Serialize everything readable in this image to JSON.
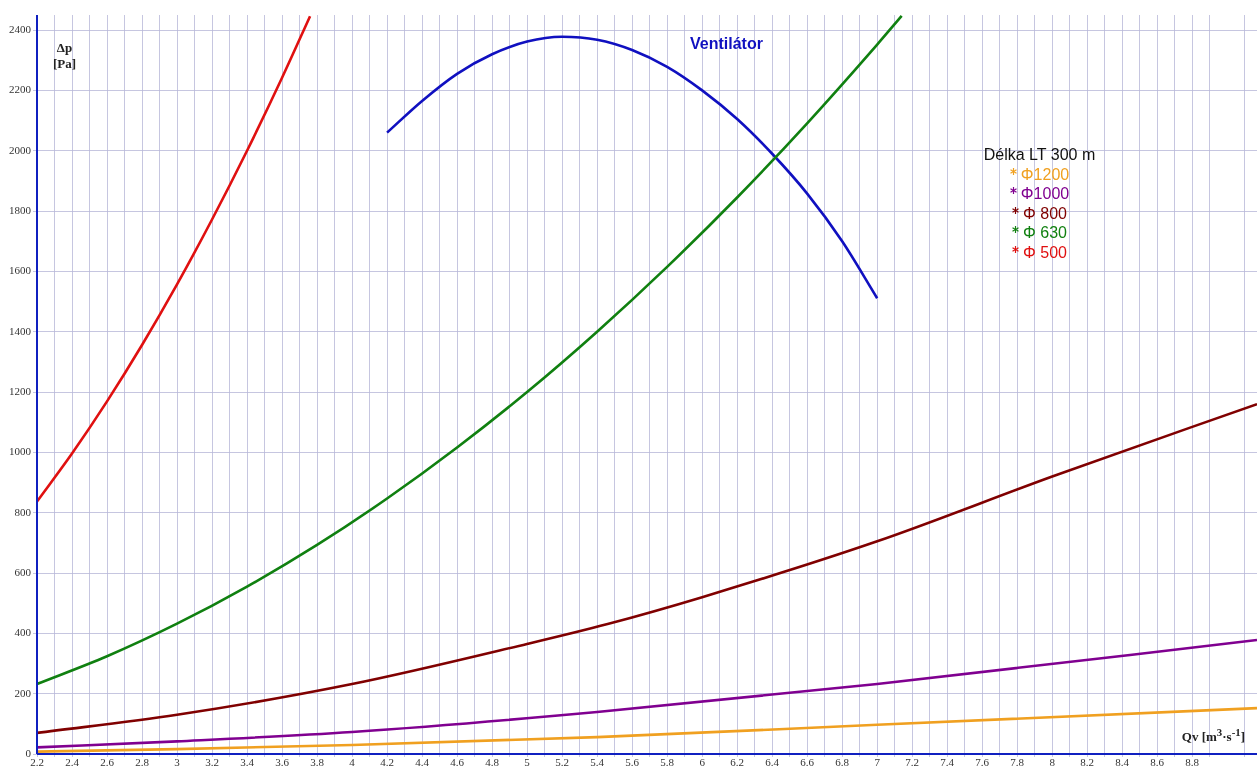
{
  "chart_data": {
    "type": "line",
    "xlabel": "Qv [m$^{3}$·s$^{-1}$]",
    "ylabel": "Δp\n[Pa]",
    "legend_title": "Délka LT 300 m",
    "legend": "top right",
    "grid": true,
    "marker": "none",
    "line_style": "solid",
    "xlim": [
      2.2,
      9.17
    ],
    "ylim": [
      0,
      2450
    ],
    "xticks": [
      2.2,
      {
        "value": 2.3,
        "label": null
      },
      2.4,
      {
        "value": 2.5,
        "label": null
      },
      2.6,
      {
        "value": 2.7,
        "label": null
      },
      2.8,
      {
        "value": 2.9,
        "label": null
      },
      3,
      {
        "value": 3.1,
        "label": null
      },
      3.2,
      {
        "value": 3.3,
        "label": null
      },
      3.4,
      {
        "value": 3.5,
        "label": null
      },
      3.6,
      {
        "value": 3.7,
        "label": null
      },
      3.8,
      {
        "value": 3.9,
        "label": null
      },
      4,
      {
        "value": 4.1,
        "label": null
      },
      4.2,
      {
        "value": 4.3,
        "label": null
      },
      4.4,
      {
        "value": 4.5,
        "label": null
      },
      4.6,
      {
        "value": 4.7,
        "label": null
      },
      4.8,
      {
        "value": 4.9,
        "label": null
      },
      5,
      {
        "value": 5.1,
        "label": null
      },
      5.2,
      {
        "value": 5.3,
        "label": null
      },
      5.4,
      {
        "value": 5.5,
        "label": null
      },
      5.6,
      {
        "value": 5.7,
        "label": null
      },
      5.8,
      {
        "value": 5.9,
        "label": null
      },
      6,
      {
        "value": 6.1,
        "label": null
      },
      6.2,
      {
        "value": 6.3,
        "label": null
      },
      6.4,
      {
        "value": 6.5,
        "label": null
      },
      6.6,
      {
        "value": 6.7,
        "label": null
      },
      6.8,
      {
        "value": 6.9,
        "label": null
      },
      7,
      {
        "value": 7.1,
        "label": null
      },
      7.2,
      {
        "value": 7.3,
        "label": null
      },
      7.4,
      {
        "value": 7.5,
        "label": null
      },
      7.6,
      {
        "value": 7.7,
        "label": null
      },
      7.8,
      {
        "value": 7.9,
        "label": null
      },
      8,
      {
        "value": 8.1,
        "label": null
      },
      8.2,
      {
        "value": 8.3,
        "label": null
      },
      8.4,
      {
        "value": 8.5,
        "label": null
      },
      8.6,
      {
        "value": 8.7,
        "label": null
      },
      8.8,
      {
        "value": 8.9,
        "label": null
      },
      {
        "value": 9.1,
        "label": null
      }
    ],
    "yticks": [
      0,
      200,
      400,
      600,
      800,
      1000,
      1200,
      1400,
      1600,
      1800,
      2000,
      2200,
      2400
    ],
    "annotations": [
      "Ventilátor"
    ],
    "series": [
      {
        "name": "Φ1200",
        "color": "#f0a020",
        "x": [
          2.2,
          3,
          4,
          5.4,
          7,
          9.17
        ],
        "values": [
          8,
          16,
          30,
          56,
          97,
          152
        ]
      },
      {
        "name": "Φ1000",
        "color": "#800090",
        "x": [
          2.2,
          3,
          4,
          5.4,
          7,
          9.17
        ],
        "values": [
          22,
          42,
          73,
          139,
          232,
          378
        ]
      },
      {
        "name": "Φ 800",
        "color": "#800000",
        "x": [
          2.2,
          3,
          4,
          5,
          5.46,
          6,
          7,
          8,
          9.17
        ],
        "values": [
          70,
          130,
          232,
          365,
          431,
          520,
          705,
          920,
          1160
        ]
      },
      {
        "name": "Φ 630",
        "color": "#108010",
        "x": [
          2.2,
          2.6,
          3,
          3.4,
          3.8,
          4.2,
          4.6,
          5,
          5.4,
          5.8,
          6.2,
          6.6,
          7,
          7.14
        ],
        "values": [
          232,
          324,
          432,
          555,
          693,
          847,
          1016,
          1200,
          1400,
          1615,
          1845,
          2091,
          2352,
          2447
        ]
      },
      {
        "name": "Φ 500",
        "color": "#e01010",
        "x": [
          2.2,
          2.4,
          2.6,
          2.8,
          3,
          3.2,
          3.4,
          3.6,
          3.76
        ],
        "values": [
          837,
          996,
          1169,
          1356,
          1557,
          1772,
          2000,
          2242,
          2446
        ]
      },
      {
        "color": "#1010c0",
        "x": [
          4.2,
          4.4,
          4.6,
          4.8,
          5,
          5.2,
          5.4,
          5.6,
          5.8,
          6,
          6.2,
          6.4,
          6.6,
          6.8,
          7
        ],
        "values": [
          2060,
          2165,
          2255,
          2320,
          2362,
          2378,
          2368,
          2334,
          2278,
          2200,
          2105,
          1990,
          1858,
          1700,
          1511
        ]
      }
    ]
  }
}
